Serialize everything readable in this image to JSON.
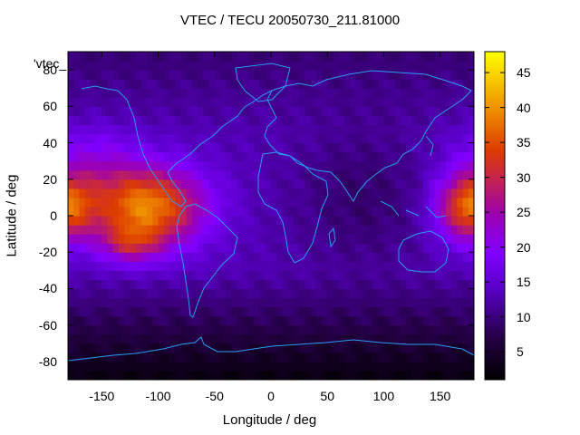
{
  "chart_data": {
    "type": "heatmap",
    "title": "VTEC / TECU 20050730_211.81000",
    "xlabel": "Longitude / deg",
    "ylabel": "Latitude / deg",
    "legend_label": "'vtec_",
    "xlim": [
      -180,
      180
    ],
    "ylim": [
      -90,
      90
    ],
    "xticks": [
      "-150",
      "-100",
      "-50",
      "0",
      "50",
      "100",
      "150"
    ],
    "yticks": [
      "-80",
      "-60",
      "-40",
      "-20",
      "0",
      "20",
      "40",
      "60",
      "80"
    ],
    "colorbar": {
      "range": [
        1,
        48
      ],
      "ticks": [
        "5",
        "10",
        "15",
        "20",
        "25",
        "30",
        "35",
        "40",
        "45"
      ]
    },
    "peaks": [
      {
        "lon": -110,
        "lat": 5,
        "vtec": 40
      },
      {
        "lon": -125,
        "lat": -15,
        "vtec": 38
      },
      {
        "lon": 175,
        "lat": 5,
        "vtec": 37
      }
    ],
    "colors": {
      "low": "#000000",
      "mid": "#8000ff",
      "high": "#ffff00",
      "coast": "#2a9cf0"
    }
  }
}
